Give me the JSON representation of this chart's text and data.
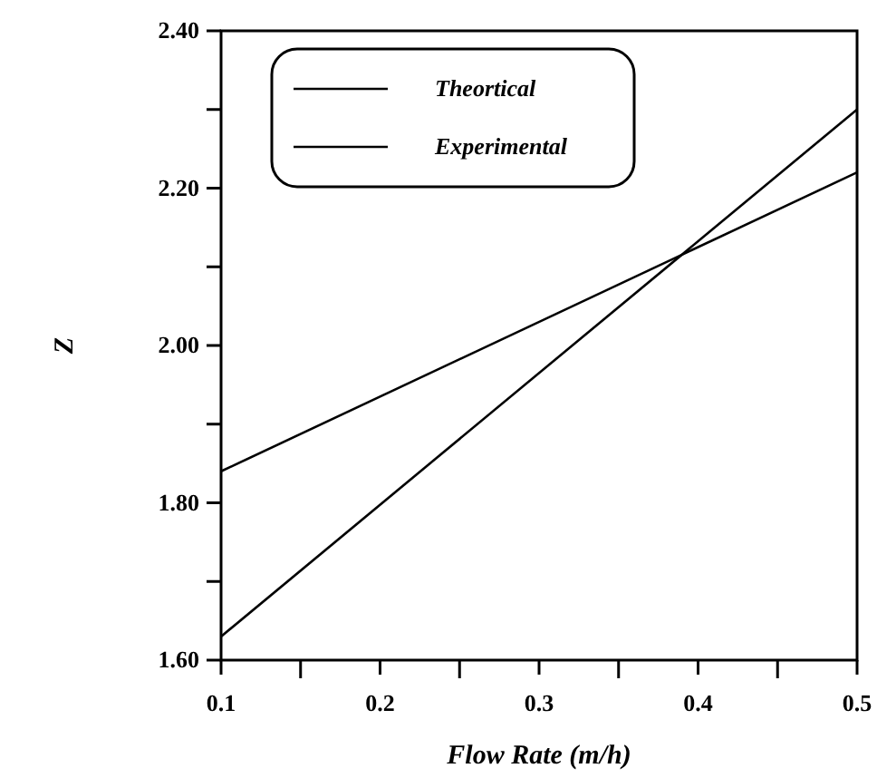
{
  "chart_data": {
    "type": "line",
    "xlabel": "Flow Rate (m/h)",
    "ylabel": "Z",
    "x": [
      0.1,
      0.5
    ],
    "series": [
      {
        "name": "Theortical",
        "color": "#000000",
        "values": [
          1.84,
          2.22
        ]
      },
      {
        "name": "Experimental",
        "color": "#000000",
        "values": [
          1.63,
          2.3
        ]
      }
    ],
    "xlim": [
      0.1,
      0.5
    ],
    "ylim": [
      1.6,
      2.4
    ],
    "xticks": [
      {
        "value": 0.1,
        "label": "0.1"
      },
      {
        "value": 0.15,
        "label": null
      },
      {
        "value": 0.2,
        "label": "0.2"
      },
      {
        "value": 0.25,
        "label": null
      },
      {
        "value": 0.3,
        "label": "0.3"
      },
      {
        "value": 0.35,
        "label": null
      },
      {
        "value": 0.4,
        "label": "0.4"
      },
      {
        "value": 0.45,
        "label": null
      },
      {
        "value": 0.5,
        "label": "0.5"
      }
    ],
    "yticks": [
      {
        "value": 1.6,
        "label": "1.60"
      },
      {
        "value": 1.7,
        "label": null
      },
      {
        "value": 1.8,
        "label": "1.80"
      },
      {
        "value": 1.9,
        "label": null
      },
      {
        "value": 2.0,
        "label": "2.00"
      },
      {
        "value": 2.1,
        "label": null
      },
      {
        "value": 2.2,
        "label": "2.20"
      },
      {
        "value": 2.3,
        "label": null
      },
      {
        "value": 2.4,
        "label": "2.40"
      }
    ],
    "grid": false,
    "legend": "top left",
    "line_style": "solid",
    "marker": "none"
  }
}
